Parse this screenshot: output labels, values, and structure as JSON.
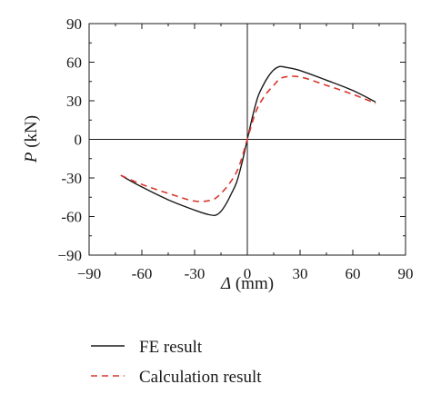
{
  "chart_data": {
    "type": "line",
    "xlabel": "Δ (mm)",
    "xlabel_symbol": "Δ",
    "xlabel_unit": " (mm)",
    "ylabel": "P (kN)",
    "ylabel_symbol": "P",
    "ylabel_unit": " (kN)",
    "xlim": [
      -90,
      90
    ],
    "ylim": [
      -90,
      90
    ],
    "xticks": [
      -90,
      -60,
      -30,
      0,
      30,
      60,
      90
    ],
    "yticks": [
      -90,
      -60,
      -30,
      0,
      30,
      60,
      90
    ],
    "xtick_labels": [
      "−90",
      "-60",
      "-30",
      "0",
      "30",
      "60",
      "90"
    ],
    "ytick_labels": [
      "−90",
      "-60",
      "-30",
      "0",
      "30",
      "60",
      "90"
    ],
    "grid": false,
    "zero_lines": true,
    "legend_position": "bottom",
    "series": [
      {
        "name": "FE result",
        "style": "solid",
        "color": "#1a1a1a",
        "x": [
          -72,
          -60,
          -45,
          -30,
          -22,
          -18,
          -15,
          -12,
          -9,
          -6,
          -3,
          0,
          3,
          6,
          9,
          12,
          15,
          18,
          20,
          22,
          30,
          45,
          60,
          73
        ],
        "y": [
          -28,
          -37,
          -47,
          -55,
          -58.5,
          -59,
          -56,
          -50,
          -42,
          -33,
          -18,
          0,
          18,
          33,
          42,
          49,
          54,
          56.5,
          56.5,
          56,
          53.5,
          46,
          38,
          29
        ]
      },
      {
        "name": "Calculation result",
        "style": "dashed",
        "color": "#d9362b",
        "x": [
          -72,
          -60,
          -45,
          -30,
          -20,
          -15,
          -10,
          -5,
          0,
          5,
          10,
          15,
          20,
          30,
          45,
          60,
          73
        ],
        "y": [
          -28,
          -35,
          -42,
          -48,
          -47,
          -42,
          -34,
          -22,
          0,
          22,
          34,
          42,
          48,
          48.5,
          42,
          35,
          28
        ]
      }
    ]
  }
}
